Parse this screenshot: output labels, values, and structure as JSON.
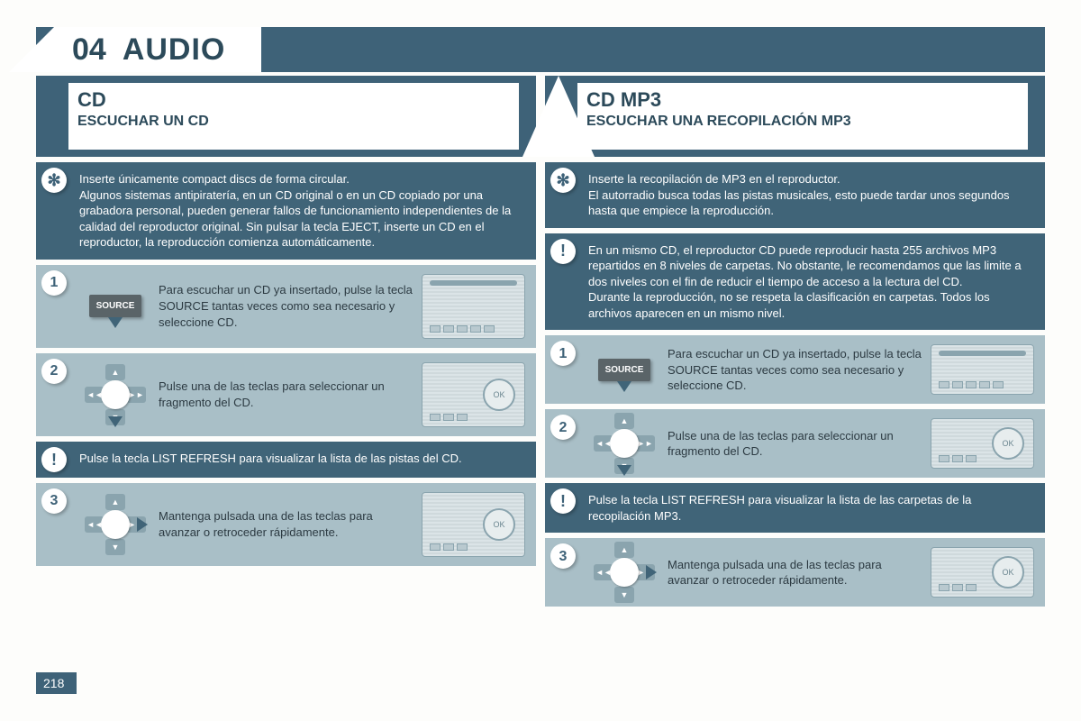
{
  "colors": {
    "primary": "#3e6278",
    "primary_text": "#2c4a5a",
    "light_box": "#a9bfc7",
    "page_bg": "#fdfdfb"
  },
  "page_number": "218",
  "header": {
    "section_number": "04",
    "section_title": "AUDIO"
  },
  "left": {
    "title": "CD",
    "subtitle": "ESCUCHAR UN CD",
    "tip": "Inserte únicamente compact discs de forma circular.\nAlgunos sistemas antipiratería, en un CD original o en un CD copiado por una grabadora personal, pueden generar fallos de funcionamiento independientes de la calidad del reproductor original. Sin pulsar la tecla EJECT, inserte un CD en el reproductor, la reproducción comienza automáticamente.",
    "step1": "Para escuchar un CD ya insertado, pulse la tecla SOURCE tantas veces como sea necesario y seleccione CD.",
    "step2": "Pulse una de las teclas para seleccionar un fragmento del CD.",
    "note": "Pulse la tecla LIST REFRESH para visualizar la lista de las pistas del CD.",
    "step3": "Mantenga pulsada una de las teclas para avanzar o retroceder rápidamente."
  },
  "right": {
    "title": "CD MP3",
    "subtitle": "ESCUCHAR UNA RECOPILACIÓN MP3",
    "tip": "Inserte la recopilación de MP3 en el reproductor.\nEl autorradio busca todas las pistas musicales, esto puede tardar unos segundos hasta que empiece la reproducción.",
    "warn": "En un mismo CD, el reproductor CD puede reproducir hasta 255 archivos MP3 repartidos en 8 niveles de carpetas. No obstante, le recomendamos que las limite a dos niveles con el fin de reducir el tiempo de acceso a la lectura del CD.\nDurante la reproducción, no se respeta la clasificación en carpetas. Todos los archivos aparecen en un mismo nivel.",
    "step1": "Para escuchar un CD ya insertado, pulse la tecla SOURCE tantas veces como sea necesario y seleccione CD.",
    "step2": "Pulse una de las teclas para seleccionar un fragmento del CD.",
    "note": "Pulse la tecla LIST REFRESH para visualizar la lista de las carpetas de la recopilación MP3.",
    "step3": "Mantenga pulsada una de las teclas para avanzar o retroceder rápidamente."
  },
  "labels": {
    "source_button": "SOURCE"
  }
}
